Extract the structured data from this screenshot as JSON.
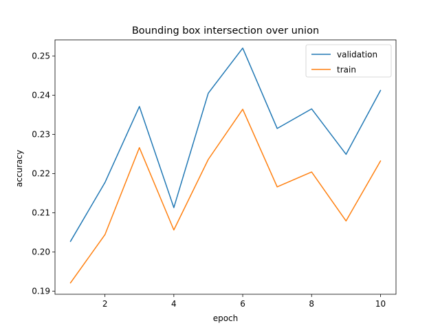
{
  "chart_data": {
    "type": "line",
    "title": "Bounding box intersection over union",
    "xlabel": "epoch",
    "ylabel": "accuracy",
    "x": [
      1,
      2,
      3,
      4,
      5,
      6,
      7,
      8,
      9,
      10
    ],
    "xlim": [
      0.55,
      10.45
    ],
    "ylim": [
      0.1892,
      0.2541
    ],
    "xticks": [
      2,
      4,
      6,
      8,
      10
    ],
    "xtick_labels": [
      "2",
      "4",
      "6",
      "8",
      "10"
    ],
    "yticks": [
      0.19,
      0.2,
      0.21,
      0.22,
      0.23,
      0.24,
      0.25
    ],
    "ytick_labels": [
      "0.19",
      "0.20",
      "0.21",
      "0.22",
      "0.23",
      "0.24",
      "0.25"
    ],
    "grid": false,
    "legend": "top-right",
    "series": [
      {
        "name": "validation",
        "color": "#1f77b4",
        "values": [
          0.2027,
          0.2177,
          0.2371,
          0.2113,
          0.2405,
          0.252,
          0.2315,
          0.2365,
          0.2249,
          0.2412
        ]
      },
      {
        "name": "train",
        "color": "#ff7f0e",
        "values": [
          0.1921,
          0.2044,
          0.2266,
          0.2056,
          0.2236,
          0.2364,
          0.2166,
          0.2204,
          0.2079,
          0.2232
        ]
      }
    ]
  }
}
